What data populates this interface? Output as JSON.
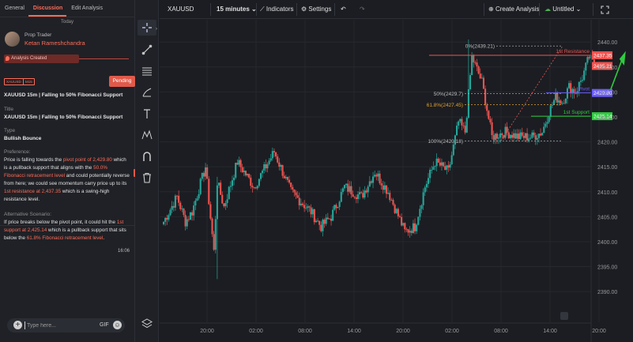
{
  "left_panel": {
    "tabs": [
      {
        "label": "General",
        "active": false
      },
      {
        "label": "Discussion",
        "active": true
      },
      {
        "label": "Edit Analysis",
        "active": false
      }
    ],
    "date_divider": "Today",
    "author": {
      "role": "Prop Trader",
      "name": "Ketan Rameshchandra"
    },
    "status_banner": "Analysis Created",
    "badges": [
      "XAUUSD",
      "M15"
    ],
    "status_button": "Pending",
    "title_label": "Title",
    "title_value": "XAUUSD 15m | Falling to 50% Fibonacci Support",
    "type_label": "Type",
    "type_value": "Bullish Bounce",
    "preference_label": "Preference:",
    "preference": {
      "t1": "Price is falling towards the ",
      "h1": "pivot point of 2,429.80",
      "t2": " which is a pullback support that aligns with the ",
      "h2": "50.0% Fibonacci retracement level",
      "t3": " and could potentially reverse from here; we could see momentum carry price up to its ",
      "h3": "1st resistance at 2,437.35",
      "t4": " which is a swing-high resistance level."
    },
    "alternative_label": "Alternative Scenario:",
    "alternative": {
      "t1": "If price breaks below the pivot point, it could hit the ",
      "h1": "1st support at 2,425.14",
      "t2": " which is a pullback support that sits below the ",
      "h2": "61.8% Fibonacci retracement level",
      "t3": "."
    },
    "message_time": "16:06",
    "composer": {
      "placeholder": "Type here...",
      "gif_label": "GIF"
    }
  },
  "toolbar": {
    "symbol": "XAUUSD",
    "interval": "15 minutes",
    "indicators": "Indicators",
    "settings": "Settings",
    "create_analysis": "Create Analysis",
    "layout_name": "Untitled"
  },
  "colors": {
    "up": "#26a69a",
    "down": "#ef5350",
    "resistance": "#ef5350",
    "support": "#2ecc40",
    "pivot": "#6a5cff",
    "fib": "#bdbdbd",
    "fib_618": "#e0a030",
    "accent": "#ff6b57"
  },
  "chart_data": {
    "type": "candlestick",
    "y_ticks": [
      "2440.00",
      "2435.00",
      "2430.00",
      "2425.00",
      "2420.00",
      "2415.00",
      "2410.00",
      "2405.00",
      "2400.00",
      "2395.00",
      "2390.00"
    ],
    "x_ticks": [
      "20:00",
      "02:00",
      "08:00",
      "14:00",
      "20:00",
      "02:00",
      "08:00",
      "14:00",
      "20:00"
    ],
    "ylim": [
      2386.7,
      2443.2
    ],
    "levels": [
      {
        "label": "1st Resistance",
        "price": 2437.35,
        "tag": "2437.35",
        "color": "#ef5350"
      },
      {
        "label": "Pivot",
        "price": 2429.8,
        "tag": "2429.80",
        "color": "#6a5cff"
      },
      {
        "label": "1st Support",
        "price": 2425.14,
        "tag": "2425.14",
        "color": "#2ecc40"
      }
    ],
    "current_price": {
      "price": 2435.21,
      "tag": "2435.21"
    },
    "fibonacci": [
      {
        "label": "0%(2439.21)",
        "price": 2439.21
      },
      {
        "label": "50%(2429.7)",
        "price": 2429.7
      },
      {
        "label": "61.8%(2427.45)",
        "price": 2427.45
      },
      {
        "label": "100%(2420.18)",
        "price": 2420.18
      }
    ],
    "path": [
      [
        0,
        2404
      ],
      [
        8,
        2409
      ],
      [
        13,
        2404
      ],
      [
        17,
        2406
      ],
      [
        25,
        2415
      ],
      [
        30,
        2398
      ],
      [
        32,
        2412
      ],
      [
        36,
        2407
      ],
      [
        44,
        2416
      ],
      [
        54,
        2411
      ],
      [
        66,
        2418
      ],
      [
        76,
        2410
      ],
      [
        88,
        2406
      ],
      [
        94,
        2403
      ],
      [
        100,
        2405
      ],
      [
        108,
        2411
      ],
      [
        118,
        2409
      ],
      [
        126,
        2414
      ],
      [
        134,
        2410
      ],
      [
        144,
        2402
      ],
      [
        150,
        2403
      ],
      [
        156,
        2411
      ],
      [
        162,
        2416
      ],
      [
        170,
        2414
      ],
      [
        176,
        2424
      ],
      [
        180,
        2422
      ],
      [
        184,
        2437
      ],
      [
        190,
        2432
      ],
      [
        196,
        2421
      ],
      [
        204,
        2422
      ],
      [
        212,
        2421
      ],
      [
        220,
        2421
      ],
      [
        226,
        2422
      ],
      [
        230,
        2426
      ],
      [
        234,
        2429
      ],
      [
        238,
        2428
      ],
      [
        242,
        2431
      ],
      [
        246,
        2430
      ],
      [
        250,
        2433
      ],
      [
        254,
        2437
      ],
      [
        257,
        2435.21
      ]
    ],
    "spikes": [
      {
        "i": 32,
        "low": 2392.5,
        "high": 2413
      },
      {
        "i": 182,
        "high": 2440.5
      }
    ]
  }
}
